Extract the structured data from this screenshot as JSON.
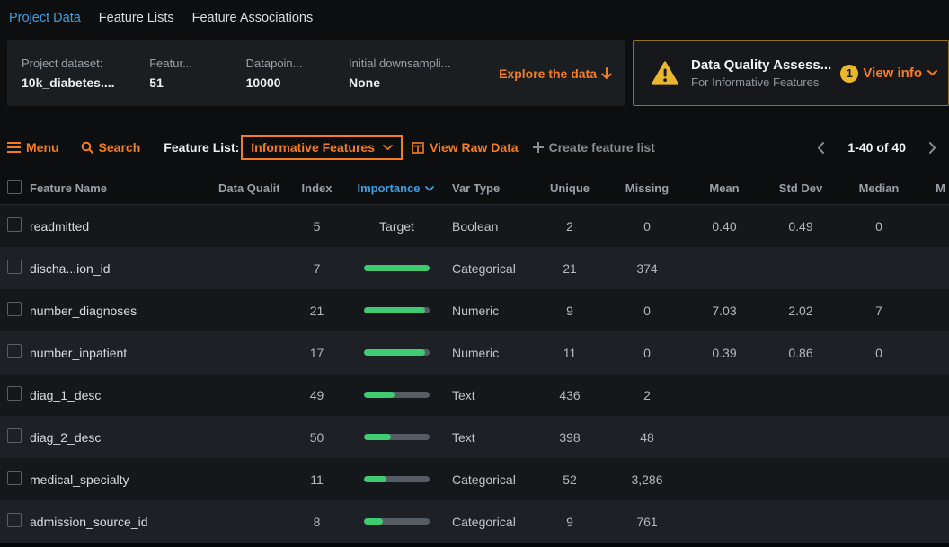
{
  "colors": {
    "accent_orange": "#f57c1f",
    "accent_blue": "#3d9fe0",
    "importance_green": "#3ecb72",
    "warning_yellow": "#e9b62d"
  },
  "nav": {
    "tabs": [
      {
        "label": "Project Data",
        "active": true
      },
      {
        "label": "Feature Lists",
        "active": false
      },
      {
        "label": "Feature Associations",
        "active": false
      }
    ]
  },
  "summary": {
    "stats": [
      {
        "label": "Project dataset:",
        "value": "10k_diabetes...."
      },
      {
        "label": "Featur...",
        "value": "51"
      },
      {
        "label": "Datapoin...",
        "value": "10000"
      },
      {
        "label": "Initial downsampli...",
        "value": "None"
      }
    ],
    "explore_label": "Explore the data",
    "quality": {
      "title": "Data Quality Assess...",
      "subtitle": "For Informative Features",
      "badge_count": "1",
      "action_label": "View info"
    }
  },
  "toolbar": {
    "menu_label": "Menu",
    "search_label": "Search",
    "feature_list_label": "Feature List:",
    "feature_list_value": "Informative Features",
    "view_raw_label": "View Raw Data",
    "create_label": "Create feature list",
    "pagination": "1-40 of 40"
  },
  "table": {
    "columns": [
      "Feature Name",
      "Data Quality",
      "Index",
      "Importance",
      "Var Type",
      "Unique",
      "Missing",
      "Mean",
      "Std Dev",
      "Median",
      "M"
    ],
    "rows": [
      {
        "name": "readmitted",
        "data_quality": "",
        "index": "5",
        "importance": {
          "type": "target",
          "label": "Target"
        },
        "var_type": "Boolean",
        "unique": "2",
        "missing": "0",
        "mean": "0.40",
        "std_dev": "0.49",
        "median": "0"
      },
      {
        "name": "discha...ion_id",
        "data_quality": "",
        "index": "7",
        "importance": {
          "type": "bar",
          "pct": 100
        },
        "var_type": "Categorical",
        "unique": "21",
        "missing": "374",
        "mean": "",
        "std_dev": "",
        "median": ""
      },
      {
        "name": "number_diagnoses",
        "data_quality": "",
        "index": "21",
        "importance": {
          "type": "bar",
          "pct": 93
        },
        "var_type": "Numeric",
        "unique": "9",
        "missing": "0",
        "mean": "7.03",
        "std_dev": "2.02",
        "median": "7"
      },
      {
        "name": "number_inpatient",
        "data_quality": "",
        "index": "17",
        "importance": {
          "type": "bar",
          "pct": 93
        },
        "var_type": "Numeric",
        "unique": "11",
        "missing": "0",
        "mean": "0.39",
        "std_dev": "0.86",
        "median": "0"
      },
      {
        "name": "diag_1_desc",
        "data_quality": "",
        "index": "49",
        "importance": {
          "type": "bar",
          "pct": 47
        },
        "var_type": "Text",
        "unique": "436",
        "missing": "2",
        "mean": "",
        "std_dev": "",
        "median": ""
      },
      {
        "name": "diag_2_desc",
        "data_quality": "",
        "index": "50",
        "importance": {
          "type": "bar",
          "pct": 41
        },
        "var_type": "Text",
        "unique": "398",
        "missing": "48",
        "mean": "",
        "std_dev": "",
        "median": ""
      },
      {
        "name": "medical_specialty",
        "data_quality": "",
        "index": "11",
        "importance": {
          "type": "bar",
          "pct": 34
        },
        "var_type": "Categorical",
        "unique": "52",
        "missing": "3,286",
        "mean": "",
        "std_dev": "",
        "median": ""
      },
      {
        "name": "admission_source_id",
        "data_quality": "",
        "index": "8",
        "importance": {
          "type": "bar",
          "pct": 29
        },
        "var_type": "Categorical",
        "unique": "9",
        "missing": "761",
        "mean": "",
        "std_dev": "",
        "median": ""
      }
    ]
  }
}
